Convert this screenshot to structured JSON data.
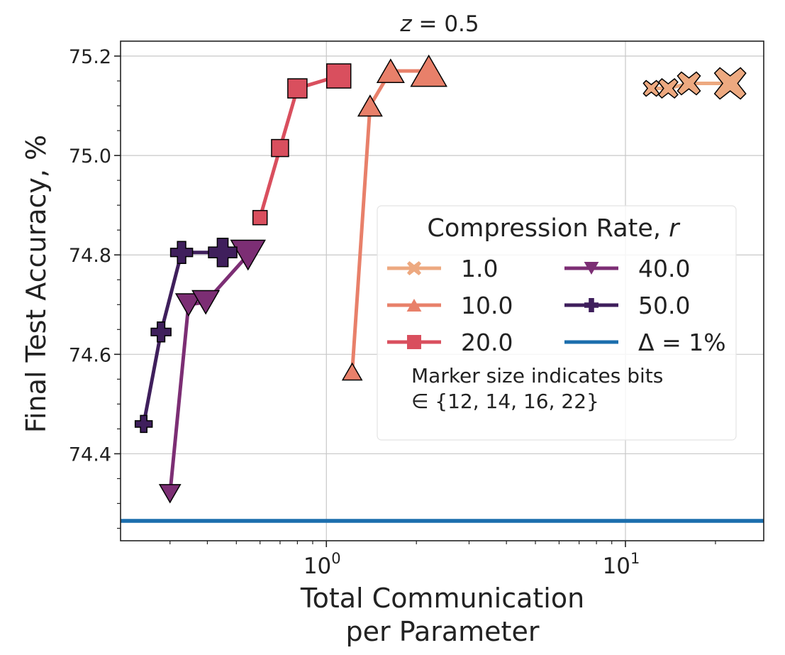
{
  "chart_data": {
    "type": "line",
    "title": "z = 0.5",
    "xlabel": "Total Communication per Parameter",
    "xlabel_lines": [
      "Total Communication",
      "per Parameter"
    ],
    "ylabel": "Final Test Accuracy, %",
    "xscale": "log",
    "xlim": [
      0.205,
      29
    ],
    "ylim": [
      74.225,
      75.23
    ],
    "x_ticks": [
      {
        "value": 1,
        "base": "10",
        "exp": "0"
      },
      {
        "value": 10,
        "base": "10",
        "exp": "1"
      }
    ],
    "y_ticks": [
      74.4,
      74.6,
      74.8,
      75.0,
      75.2
    ],
    "y_tick_labels": [
      "74.4",
      "74.6",
      "74.8",
      "75.0",
      "75.2"
    ],
    "grid": true,
    "legend": {
      "title": "Compression Rate, r",
      "placement": "center-right",
      "note_lines": [
        "Marker size indicates bits",
        "∈ {12, 14, 16, 22}"
      ]
    },
    "marker_bits": [
      12,
      14,
      16,
      22
    ],
    "series": [
      {
        "name": "1.0",
        "color": "#EDA980",
        "marker": "x",
        "x": [
          12.2,
          13.9,
          16.3,
          22.4
        ],
        "y": [
          75.135,
          75.135,
          75.145,
          75.145
        ]
      },
      {
        "name": "10.0",
        "color": "#E8806A",
        "marker": "triangle-up",
        "x": [
          1.22,
          1.4,
          1.64,
          2.2
        ],
        "y": [
          74.565,
          75.1,
          75.17,
          75.17
        ]
      },
      {
        "name": "20.0",
        "color": "#D94F5E",
        "marker": "square",
        "x": [
          0.6,
          0.7,
          0.8,
          1.1
        ],
        "y": [
          74.875,
          75.015,
          75.135,
          75.16
        ]
      },
      {
        "name": "40.0",
        "color": "#7C2E74",
        "marker": "triangle-down",
        "x": [
          0.3,
          0.346,
          0.395,
          0.547
        ],
        "y": [
          74.32,
          74.7,
          74.705,
          74.8
        ]
      },
      {
        "name": "50.0",
        "color": "#3F1F5C",
        "marker": "plus",
        "x": [
          0.245,
          0.28,
          0.328,
          0.45
        ],
        "y": [
          74.46,
          74.645,
          74.805,
          74.805
        ]
      }
    ],
    "reference_line": {
      "name": "Δ = 1%",
      "y": 74.265,
      "color": "#1B6EAD"
    }
  }
}
